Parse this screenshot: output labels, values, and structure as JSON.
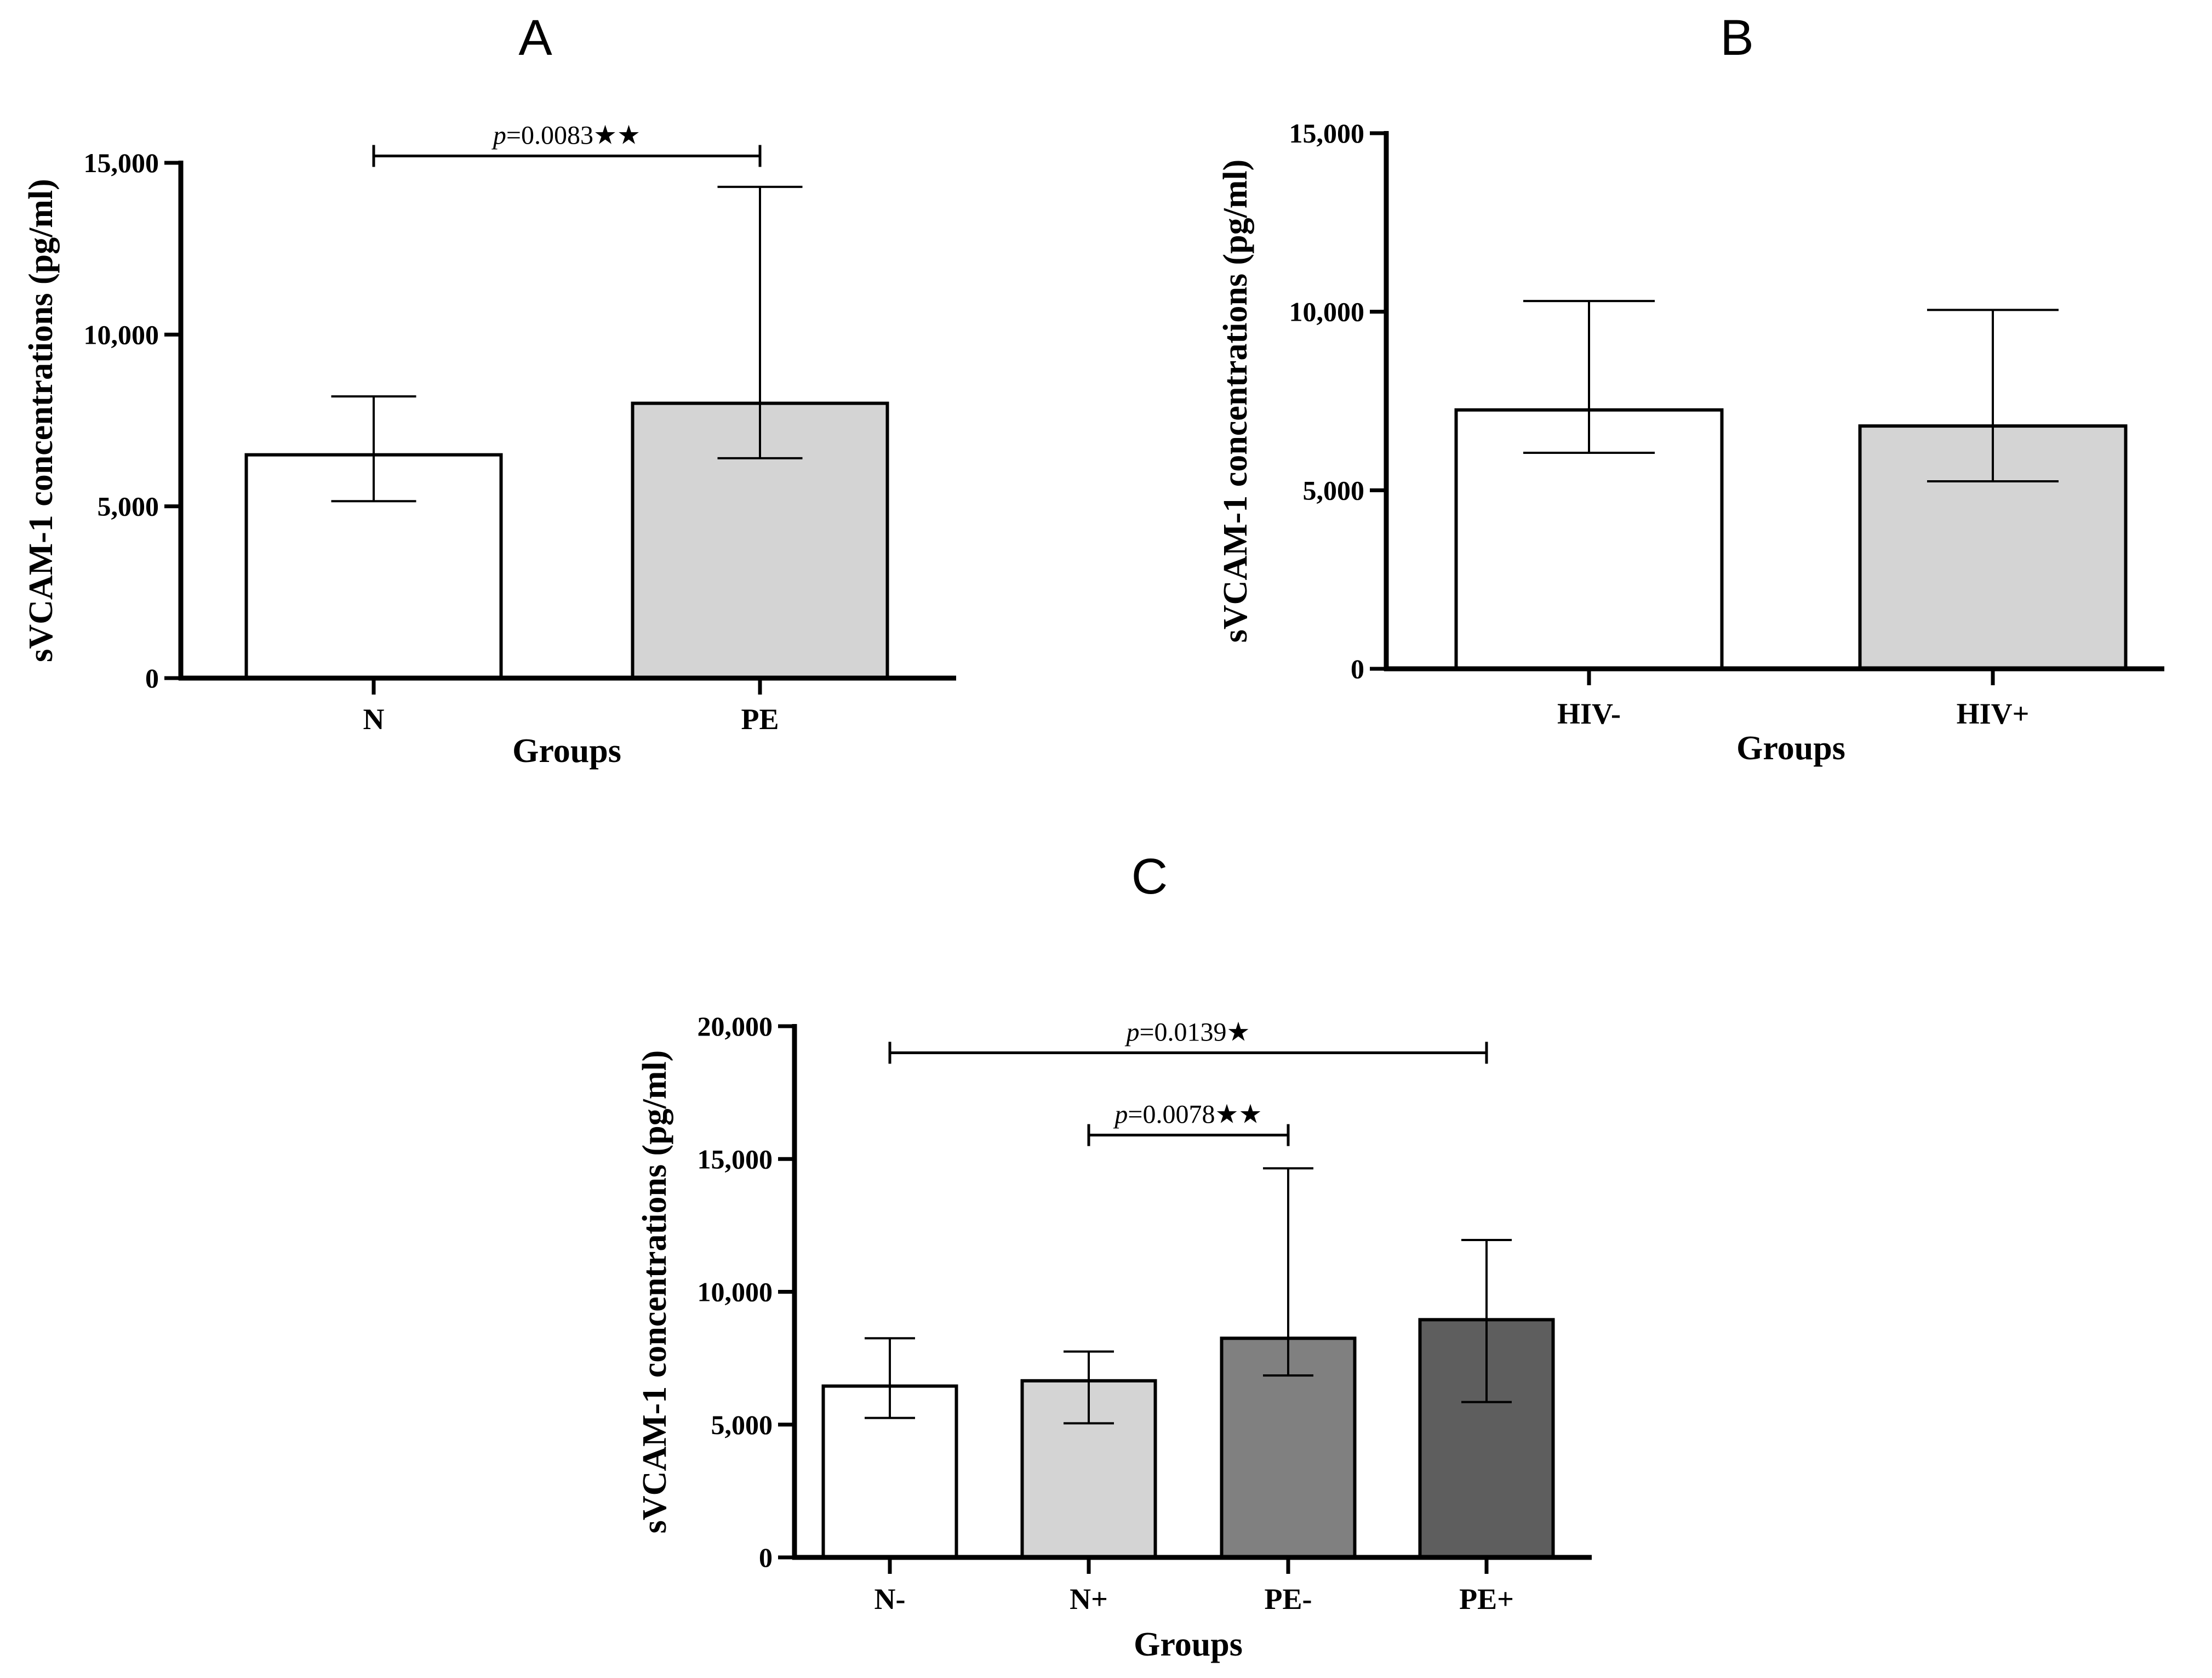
{
  "chart_data": [
    {
      "panel": "A",
      "type": "bar",
      "categories": [
        "N",
        "PE"
      ],
      "values": [
        6500,
        8000
      ],
      "error_lower": [
        5150,
        6400
      ],
      "error_upper": [
        8200,
        14300
      ],
      "bar_colors": [
        "#ffffff",
        "#d4d4d4"
      ],
      "xlabel": "Groups",
      "ylabel": "sVCAM-1 concentrations (pg/ml)",
      "ylim": [
        0,
        15000
      ],
      "yticks": [
        0,
        5000,
        10000,
        15000
      ],
      "ytick_labels": [
        "0",
        "5,000",
        "10,000",
        "15,000"
      ],
      "significance": [
        {
          "from": 0,
          "to": 1,
          "at": 15200,
          "p": "p",
          "text": "=0.0083",
          "stars": "★★"
        }
      ]
    },
    {
      "panel": "B",
      "type": "bar",
      "categories": [
        "HIV-",
        "HIV+"
      ],
      "values": [
        7250,
        6800
      ],
      "error_lower": [
        6050,
        5250
      ],
      "error_upper": [
        10300,
        10050
      ],
      "bar_colors": [
        "#ffffff",
        "#d4d4d4"
      ],
      "xlabel": "Groups",
      "ylabel": "sVCAM-1 concentrations (pg/ml)",
      "ylim": [
        0,
        15000
      ],
      "yticks": [
        0,
        5000,
        10000,
        15000
      ],
      "ytick_labels": [
        "0",
        "5,000",
        "10,000",
        "15,000"
      ],
      "significance": []
    },
    {
      "panel": "C",
      "type": "bar",
      "categories": [
        "N-",
        "N+",
        "PE-",
        "PE+"
      ],
      "values": [
        6450,
        6650,
        8250,
        8950
      ],
      "error_lower": [
        5250,
        5050,
        6850,
        5850
      ],
      "error_upper": [
        8250,
        7750,
        14650,
        11950
      ],
      "bar_colors": [
        "#ffffff",
        "#d4d4d4",
        "#808080",
        "#5e5e5e"
      ],
      "xlabel": "Groups",
      "ylabel": "sVCAM-1 concentrations (pg/ml)",
      "ylim": [
        0,
        20000
      ],
      "yticks": [
        0,
        5000,
        10000,
        15000,
        20000
      ],
      "ytick_labels": [
        "0",
        "5,000",
        "10,000",
        "15,000",
        "20,000"
      ],
      "significance": [
        {
          "from": 0,
          "to": 3,
          "at": 19000,
          "p": "p",
          "text": "=0.0139",
          "stars": "★"
        },
        {
          "from": 1,
          "to": 2,
          "at": 15900,
          "p": "p",
          "text": "=0.0078",
          "stars": "★★"
        }
      ]
    }
  ]
}
